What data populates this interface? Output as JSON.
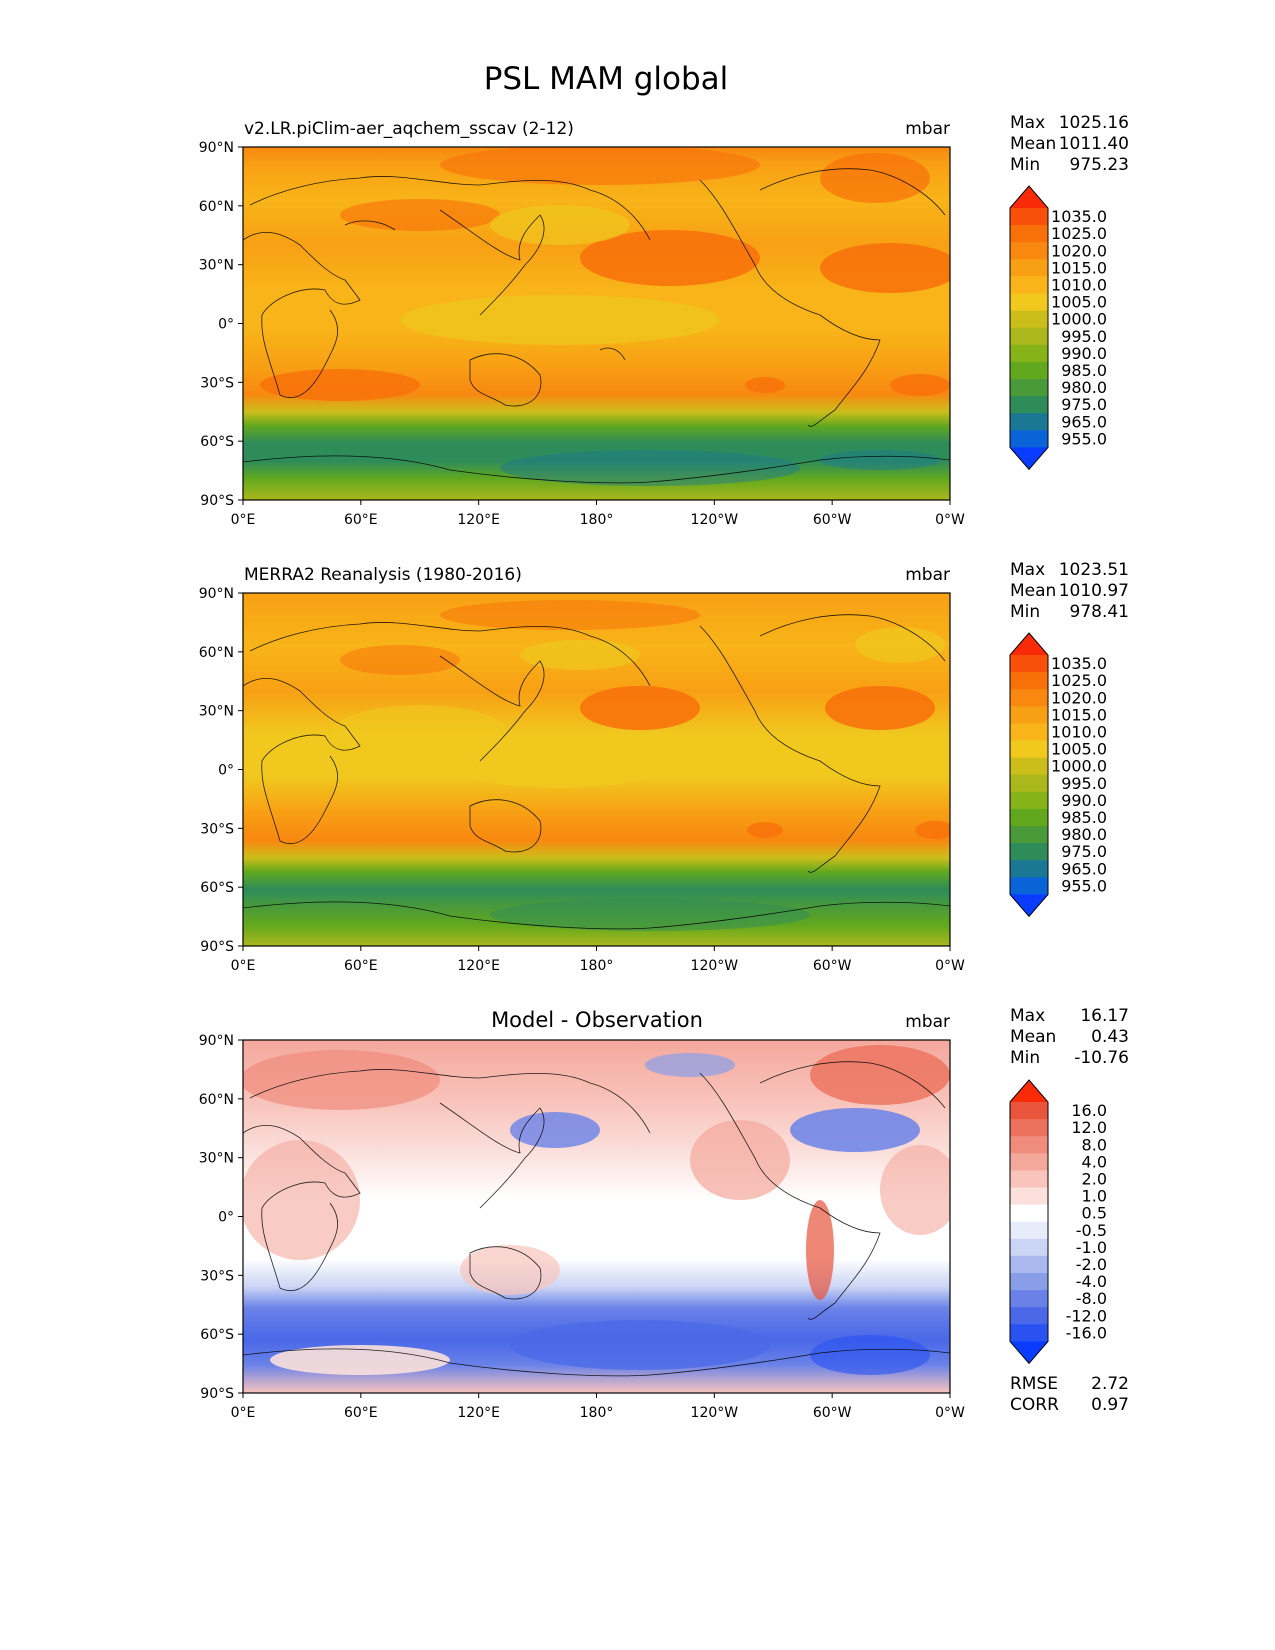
{
  "figure": {
    "title": "PSL MAM global"
  },
  "axes": {
    "lat_ticks": [
      "90°N",
      "60°N",
      "30°N",
      "0°",
      "30°S",
      "60°S",
      "90°S"
    ],
    "lon_ticks": [
      "0°E",
      "60°E",
      "120°E",
      "180°",
      "120°W",
      "60°W",
      "0°W"
    ]
  },
  "panels": [
    {
      "title": "v2.LR.piClim-aer_aqchem_sscav (2-12)",
      "units": "mbar",
      "stats": {
        "max_label": "Max",
        "max": "1025.16",
        "mean_label": "Mean",
        "mean": "1011.40",
        "min_label": "Min",
        "min": "975.23"
      },
      "colorbar": [
        "1035.0",
        "1025.0",
        "1020.0",
        "1015.0",
        "1010.0",
        "1005.0",
        "1000.0",
        "995.0",
        "990.0",
        "985.0",
        "980.0",
        "975.0",
        "965.0",
        "955.0"
      ]
    },
    {
      "title": "MERRA2 Reanalysis (1980-2016)",
      "units": "mbar",
      "stats": {
        "max_label": "Max",
        "max": "1023.51",
        "mean_label": "Mean",
        "mean": "1010.97",
        "min_label": "Min",
        "min": "978.41"
      },
      "colorbar": [
        "1035.0",
        "1025.0",
        "1020.0",
        "1015.0",
        "1010.0",
        "1005.0",
        "1000.0",
        "995.0",
        "990.0",
        "985.0",
        "980.0",
        "975.0",
        "965.0",
        "955.0"
      ]
    },
    {
      "title": "Model - Observation",
      "units": "mbar",
      "stats": {
        "max_label": "Max",
        "max": "16.17",
        "mean_label": "Mean",
        "mean": "0.43",
        "min_label": "Min",
        "min": "-10.76"
      },
      "colorbar": [
        "16.0",
        "12.0",
        "8.0",
        "4.0",
        "2.0",
        "1.0",
        "0.5",
        "-0.5",
        "-1.0",
        "-2.0",
        "-4.0",
        "-8.0",
        "-12.0",
        "-16.0"
      ],
      "metrics": {
        "rmse_label": "RMSE",
        "rmse": "2.72",
        "corr_label": "CORR",
        "corr": "0.97"
      }
    }
  ],
  "colors": {
    "abs": [
      "#0a3cff",
      "#0a64d8",
      "#1a7894",
      "#2e8c5a",
      "#4a9a3a",
      "#62a81e",
      "#86b418",
      "#aab81c",
      "#ccbe1a",
      "#f0c81e",
      "#f8b418",
      "#f8a014",
      "#f88810",
      "#f8700a",
      "#f85008",
      "#f82a08"
    ],
    "diff": [
      "#0a3cff",
      "#2a52f0",
      "#4a68e8",
      "#6a82e8",
      "#8a9ee8",
      "#aab8f0",
      "#cad4f4",
      "#e8ecfa",
      "#ffffff",
      "#fbe0dc",
      "#f8c4bc",
      "#f4a89c",
      "#f08c7c",
      "#ec705c",
      "#e8543c",
      "#f82a08"
    ]
  }
}
